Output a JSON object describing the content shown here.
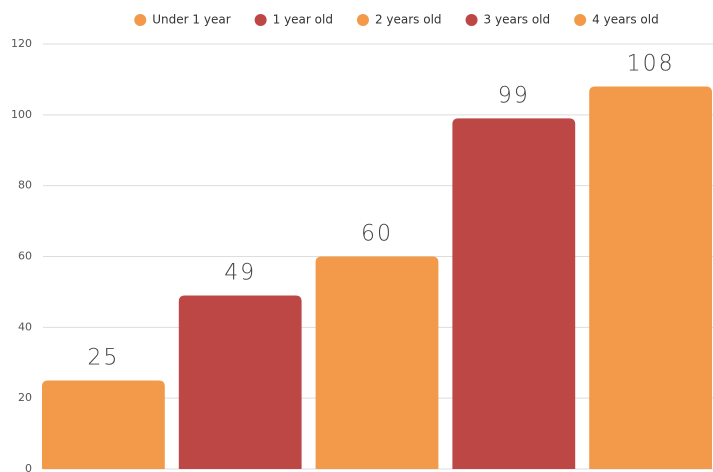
{
  "chart_data": {
    "type": "bar",
    "categories": [
      null
    ],
    "series": [
      {
        "name": "Under 1 year",
        "color": "#f2994a",
        "values": [
          25
        ]
      },
      {
        "name": "1 year old",
        "color": "#bc4745",
        "values": [
          49
        ]
      },
      {
        "name": "2 years old",
        "color": "#f2994a",
        "values": [
          60
        ]
      },
      {
        "name": "3 years old",
        "color": "#bc4745",
        "values": [
          99
        ]
      },
      {
        "name": "4 years old",
        "color": "#f2994a",
        "values": [
          108
        ]
      }
    ],
    "ylim": [
      0,
      120
    ],
    "yticks": [
      0,
      20,
      40,
      60,
      80,
      100,
      120
    ],
    "grid": true,
    "legend": "top"
  }
}
